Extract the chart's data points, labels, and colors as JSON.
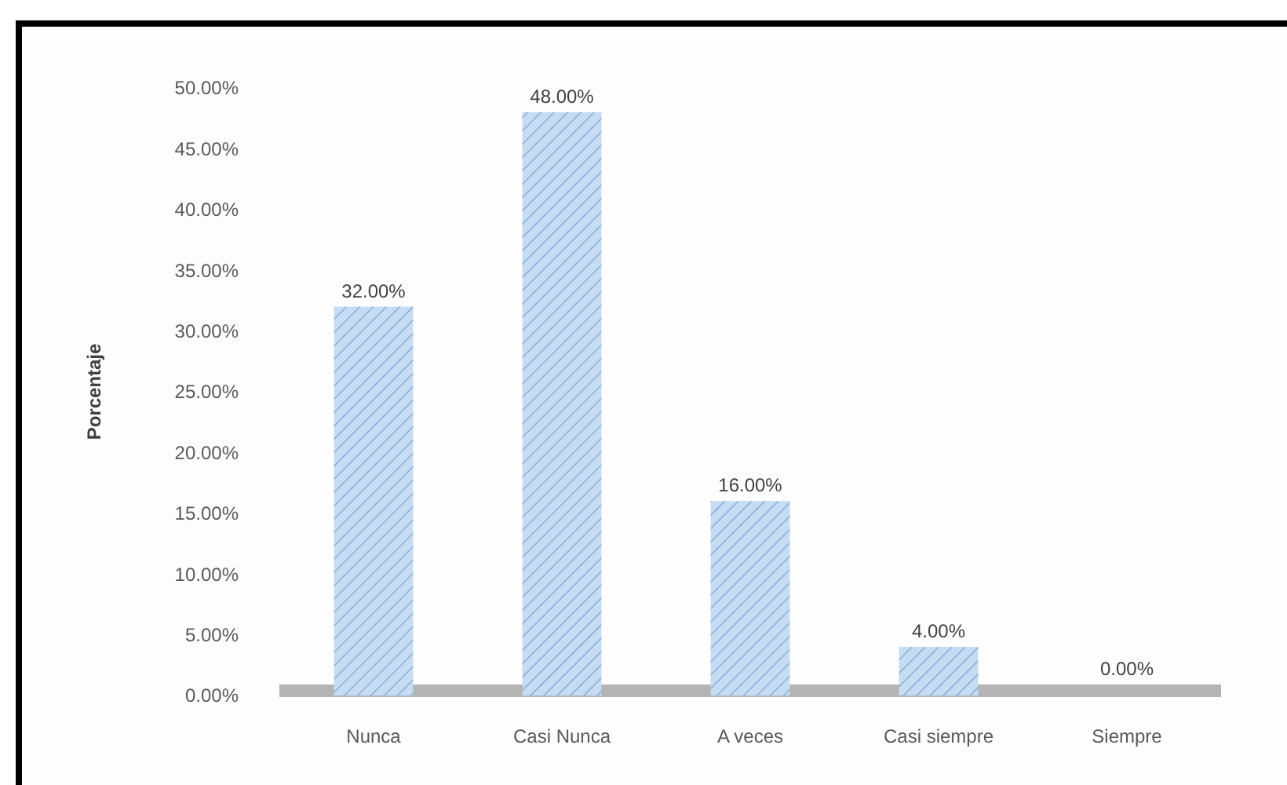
{
  "chart_data": {
    "type": "bar",
    "ylabel": "Porcentaje",
    "categories": [
      "Nunca",
      "Casi Nunca",
      "A veces",
      "Casi siempre",
      "Siempre"
    ],
    "values": [
      32,
      48,
      16,
      4,
      0
    ],
    "color": "#c6dcf2",
    "value_labels": [
      "32.00%",
      "48.00%",
      "16.00%",
      "4.00%",
      "0.00%"
    ],
    "ylim": [
      0,
      50
    ],
    "yticks": [
      {
        "value": 0,
        "label": "0.00%"
      },
      {
        "value": 5,
        "label": "5.00%"
      },
      {
        "value": 10,
        "label": "10.00%"
      },
      {
        "value": 15,
        "label": "15.00%"
      },
      {
        "value": 20,
        "label": "20.00%"
      },
      {
        "value": 25,
        "label": "25.00%"
      },
      {
        "value": 30,
        "label": "30.00%"
      },
      {
        "value": 35,
        "label": "35.00%"
      },
      {
        "value": 40,
        "label": "40.00%"
      },
      {
        "value": 45,
        "label": "45.00%"
      },
      {
        "value": 50,
        "label": "50.00%"
      }
    ]
  }
}
